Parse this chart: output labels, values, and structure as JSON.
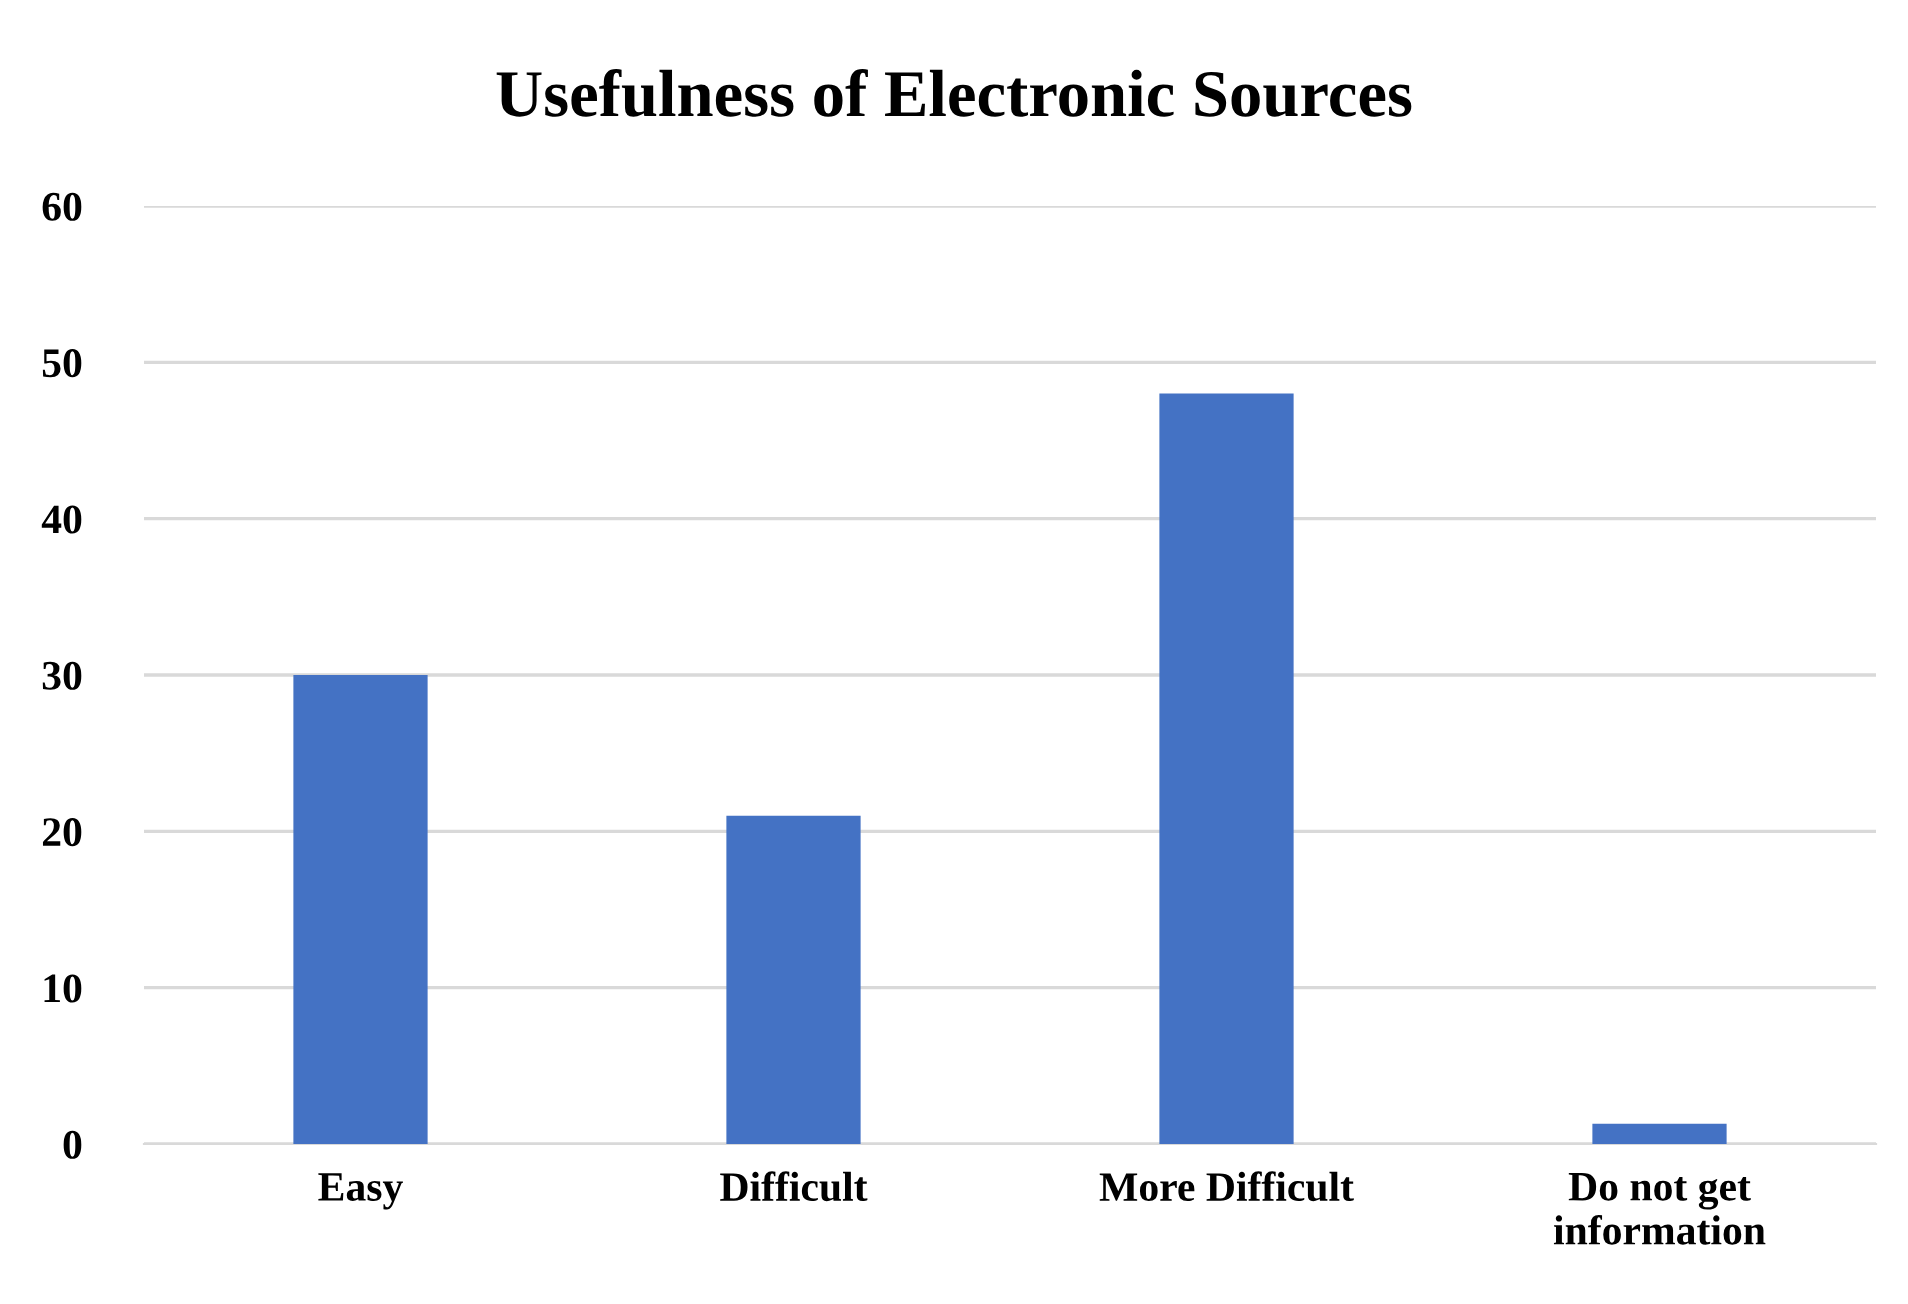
{
  "chart_data": {
    "type": "bar",
    "title": "Usefulness of Electronic Sources",
    "categories": [
      "Easy",
      "Difficult",
      "More Difficult",
      "Do not get\ninformation"
    ],
    "values": [
      30,
      21,
      48,
      1.3
    ],
    "color": "#4472c4",
    "ylim": [
      0,
      60
    ],
    "yticks": [
      0,
      10,
      20,
      30,
      40,
      50,
      60
    ],
    "grid": "y",
    "legend": false
  }
}
